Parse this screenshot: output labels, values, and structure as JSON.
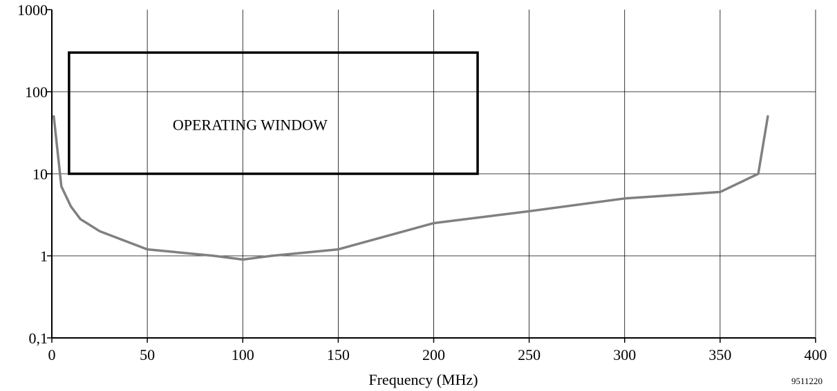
{
  "chart_data": {
    "type": "line",
    "title": "",
    "xlabel": "Frequency (MHz)",
    "ylabel": "",
    "xlim": [
      0,
      400
    ],
    "ylim": [
      0.1,
      1000
    ],
    "yscale": "log",
    "grid": true,
    "x_ticks": [
      0,
      50,
      100,
      150,
      200,
      250,
      300,
      350,
      400
    ],
    "x_tick_labels": [
      "0",
      "50",
      "100",
      "150",
      "200",
      "250",
      "300",
      "350",
      "400"
    ],
    "y_ticks": [
      0.1,
      1,
      10,
      100,
      1000
    ],
    "y_tick_labels": [
      "0,1",
      "1",
      "10",
      "100",
      "1000"
    ],
    "series": [
      {
        "x": [
          1,
          5,
          10,
          15,
          25,
          50,
          85,
          100,
          115,
          150,
          200,
          250,
          300,
          350,
          370,
          375
        ],
        "y": [
          50,
          7,
          4,
          2.8,
          2,
          1.2,
          1,
          0.9,
          1,
          1.2,
          2.5,
          3.5,
          5,
          6,
          10,
          50
        ],
        "color": "#808080"
      }
    ],
    "annotations": [
      {
        "type": "rectangle",
        "label": "OPERATING WINDOW",
        "x_range": [
          9,
          223
        ],
        "y_range": [
          10,
          300
        ],
        "color": "#000000"
      }
    ],
    "figure_code": "9511220"
  }
}
